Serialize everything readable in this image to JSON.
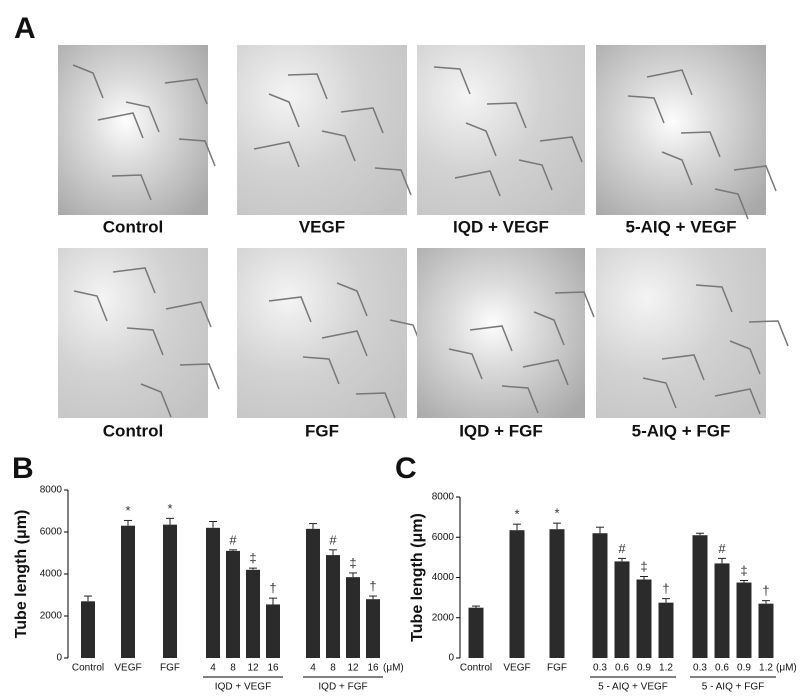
{
  "panel_labels": {
    "a": "A",
    "b": "B",
    "c": "C"
  },
  "images": [
    {
      "caption": "Control"
    },
    {
      "caption": "VEGF"
    },
    {
      "caption": "IQD + VEGF"
    },
    {
      "caption": "5-AIQ + VEGF"
    },
    {
      "caption": "Control"
    },
    {
      "caption": "FGF"
    },
    {
      "caption": "IQD + FGF"
    },
    {
      "caption": "5-AIQ + FGF"
    }
  ],
  "chart_data": [
    {
      "type": "bar",
      "y_label": "Tube length (μm)",
      "categories": [
        "Control",
        "VEGF",
        "FGF",
        "4",
        "8",
        "12",
        "16",
        "4",
        "8",
        "12",
        "16"
      ],
      "values": [
        2700,
        6300,
        6350,
        6200,
        5100,
        4200,
        2550,
        6150,
        4900,
        3850,
        2800
      ],
      "errors": [
        250,
        250,
        300,
        300,
        50,
        80,
        300,
        250,
        250,
        200,
        150
      ],
      "annotations": [
        null,
        "*",
        "*",
        null,
        "#",
        "‡",
        "†",
        null,
        "#",
        "‡",
        "†"
      ],
      "groups": [
        "IQD + VEGF",
        "IQD + FGF"
      ],
      "unit_label": "(μM)",
      "color": "#2b2b2b",
      "ylim": [
        0,
        8000
      ],
      "yticks": [
        0,
        2000,
        4000,
        6000,
        8000
      ]
    },
    {
      "type": "bar",
      "y_label": "Tube length (μm)",
      "categories": [
        "Control",
        "VEGF",
        "FGF",
        "0.3",
        "0.6",
        "0.9",
        "1.2",
        "0.3",
        "0.6",
        "0.9",
        "1.2"
      ],
      "values": [
        2500,
        6350,
        6400,
        6200,
        4800,
        3900,
        2750,
        6100,
        4700,
        3750,
        2700
      ],
      "errors": [
        80,
        300,
        300,
        300,
        150,
        150,
        200,
        100,
        250,
        100,
        150
      ],
      "annotations": [
        null,
        "*",
        "*",
        null,
        "#",
        "‡",
        "†",
        null,
        "#",
        "‡",
        "†"
      ],
      "groups": [
        "5 - AIQ + VEGF",
        "5 - AIQ + FGF"
      ],
      "unit_label": "(μM)",
      "color": "#2b2b2b",
      "ylim": [
        0,
        8000
      ],
      "yticks": [
        0,
        2000,
        4000,
        6000,
        8000
      ]
    }
  ]
}
